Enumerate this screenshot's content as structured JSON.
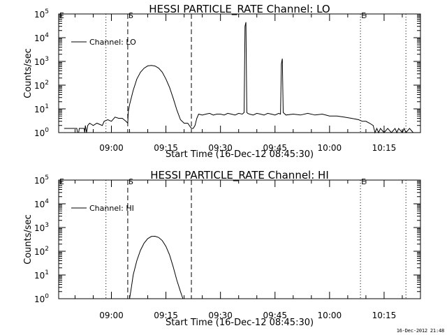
{
  "footer_timestamp": "16-Dec-2012 21:48",
  "chart_data": [
    {
      "type": "line",
      "title": "HESSI PARTICLE_RATE Channel: LO",
      "xlabel": "Start Time (16-Dec-12 08:45:30)",
      "ylabel": "Counts/sec",
      "yscale": "log",
      "ylim": [
        1,
        100000
      ],
      "xlim": [
        "08:45:30",
        "10:25:00"
      ],
      "x_ticks": [
        "09:00",
        "09:15",
        "09:30",
        "09:45",
        "10:00",
        "10:15"
      ],
      "y_ticks": [
        "10^0",
        "10^1",
        "10^2",
        "10^3",
        "10^4",
        "10^5"
      ],
      "legend": {
        "label": "Channel: LO",
        "position": "top-left"
      },
      "markers": [
        {
          "label": "E",
          "time": "08:45:30",
          "style": "none"
        },
        {
          "label": "",
          "time": "08:58:30",
          "style": "dotted"
        },
        {
          "label": "S",
          "time": "09:04:30",
          "style": "dashed"
        },
        {
          "label": "",
          "time": "09:22:00",
          "style": "dashed"
        },
        {
          "label": "E",
          "time": "10:08:30",
          "style": "dotted"
        },
        {
          "label": "",
          "time": "10:21:00",
          "style": "dotted"
        }
      ],
      "series": [
        {
          "name": "Channel: LO",
          "points": [
            [
              "08:47:00",
              1.5
            ],
            [
              "08:50:30",
              1.5
            ],
            [
              "08:50:40",
              1.0
            ],
            [
              "08:51:00",
              1.0
            ],
            [
              "08:51:10",
              1.5
            ],
            [
              "08:52:30",
              1.5
            ],
            [
              "08:52:40",
              1.0
            ],
            [
              "08:52:50",
              2.0
            ],
            [
              "08:53:10",
              1.0
            ],
            [
              "08:53:30",
              2.0
            ],
            [
              "08:54:00",
              2.5
            ],
            [
              "08:55:00",
              2.0
            ],
            [
              "08:56:00",
              2.5
            ],
            [
              "08:57:30",
              2.0
            ],
            [
              "08:58:00",
              3.0
            ],
            [
              "08:59:00",
              3.5
            ],
            [
              "09:00:00",
              3.0
            ],
            [
              "09:01:00",
              4.5
            ],
            [
              "09:02:00",
              4.0
            ],
            [
              "09:03:00",
              4.0
            ],
            [
              "09:04:00",
              3.0
            ],
            [
              "09:04:30",
              2.5
            ],
            [
              "09:04:40",
              8
            ],
            [
              "09:05:00",
              15
            ],
            [
              "09:06:00",
              60
            ],
            [
              "09:07:00",
              180
            ],
            [
              "09:08:00",
              350
            ],
            [
              "09:09:00",
              520
            ],
            [
              "09:10:00",
              650
            ],
            [
              "09:11:00",
              680
            ],
            [
              "09:12:00",
              640
            ],
            [
              "09:13:00",
              520
            ],
            [
              "09:14:00",
              350
            ],
            [
              "09:15:00",
              180
            ],
            [
              "09:16:00",
              80
            ],
            [
              "09:17:00",
              28
            ],
            [
              "09:18:00",
              9
            ],
            [
              "09:19:00",
              3.5
            ],
            [
              "09:20:00",
              2.5
            ],
            [
              "09:21:00",
              2.5
            ],
            [
              "09:22:00",
              1.5
            ],
            [
              "09:22:30",
              1.5
            ],
            [
              "09:23:00",
              2.0
            ],
            [
              "09:23:30",
              4.0
            ],
            [
              "09:24:00",
              6.0
            ],
            [
              "09:25:00",
              5.5
            ],
            [
              "09:26:00",
              6.0
            ],
            [
              "09:27:00",
              6.5
            ],
            [
              "09:28:00",
              5.5
            ],
            [
              "09:29:00",
              6.0
            ],
            [
              "09:30:00",
              6.0
            ],
            [
              "09:31:00",
              5.5
            ],
            [
              "09:32:00",
              6.5
            ],
            [
              "09:33:00",
              6.0
            ],
            [
              "09:34:00",
              5.5
            ],
            [
              "09:35:00",
              6.5
            ],
            [
              "09:36:00",
              6.0
            ],
            [
              "09:36:30",
              7.0
            ],
            [
              "09:36:45",
              30000
            ],
            [
              "09:37:00",
              45000
            ],
            [
              "09:37:15",
              7.0
            ],
            [
              "09:37:30",
              6.5
            ],
            [
              "09:38:00",
              6.0
            ],
            [
              "09:39:00",
              5.5
            ],
            [
              "09:40:00",
              6.5
            ],
            [
              "09:41:00",
              6.0
            ],
            [
              "09:42:00",
              5.5
            ],
            [
              "09:43:00",
              6.5
            ],
            [
              "09:44:00",
              6.0
            ],
            [
              "09:45:00",
              5.5
            ],
            [
              "09:46:00",
              6.5
            ],
            [
              "09:46:30",
              6.0
            ],
            [
              "09:46:45",
              800
            ],
            [
              "09:47:00",
              1300
            ],
            [
              "09:47:15",
              7.0
            ],
            [
              "09:47:30",
              6.5
            ],
            [
              "09:48:00",
              5.5
            ],
            [
              "09:50:00",
              6.0
            ],
            [
              "09:52:00",
              5.5
            ],
            [
              "09:54:00",
              6.5
            ],
            [
              "09:56:00",
              5.5
            ],
            [
              "09:58:00",
              6.0
            ],
            [
              "10:00:00",
              5.0
            ],
            [
              "10:02:00",
              5.0
            ],
            [
              "10:04:00",
              4.5
            ],
            [
              "10:06:00",
              4.0
            ],
            [
              "10:08:00",
              3.5
            ],
            [
              "10:09:00",
              3.0
            ],
            [
              "10:10:00",
              3.0
            ],
            [
              "10:11:00",
              2.5
            ],
            [
              "10:12:00",
              2.0
            ],
            [
              "10:12:30",
              1.0
            ],
            [
              "10:13:00",
              1.5
            ],
            [
              "10:13:30",
              1.0
            ],
            [
              "10:14:00",
              1.5
            ],
            [
              "10:15:00",
              1.0
            ],
            [
              "10:16:00",
              1.5
            ],
            [
              "10:17:00",
              1.0
            ],
            [
              "10:18:00",
              1.5
            ],
            [
              "10:18:30",
              1.0
            ],
            [
              "10:19:00",
              1.5
            ],
            [
              "10:20:00",
              1.0
            ],
            [
              "10:20:30",
              1.5
            ],
            [
              "10:21:00",
              1.0
            ],
            [
              "10:22:00",
              1.5
            ],
            [
              "10:23:00",
              1.0
            ]
          ]
        }
      ]
    },
    {
      "type": "line",
      "title": "HESSI PARTICLE_RATE Channel: HI",
      "xlabel": "Start Time (16-Dec-12 08:45:30)",
      "ylabel": "Counts/sec",
      "yscale": "log",
      "ylim": [
        1,
        100000
      ],
      "xlim": [
        "08:45:30",
        "10:25:00"
      ],
      "x_ticks": [
        "09:00",
        "09:15",
        "09:30",
        "09:45",
        "10:00",
        "10:15"
      ],
      "y_ticks": [
        "10^0",
        "10^1",
        "10^2",
        "10^3",
        "10^4",
        "10^5"
      ],
      "legend": {
        "label": "Channel: HI",
        "position": "top-left"
      },
      "markers": [
        {
          "label": "E",
          "time": "08:45:30",
          "style": "none"
        },
        {
          "label": "",
          "time": "08:58:30",
          "style": "dotted"
        },
        {
          "label": "S",
          "time": "09:04:30",
          "style": "dashed"
        },
        {
          "label": "",
          "time": "09:22:00",
          "style": "dashed"
        },
        {
          "label": "E",
          "time": "10:08:30",
          "style": "dotted"
        },
        {
          "label": "",
          "time": "10:21:00",
          "style": "dotted"
        }
      ],
      "series": [
        {
          "name": "Channel: HI",
          "points": [
            [
              "09:05:00",
              1.0
            ],
            [
              "09:05:30",
              3
            ],
            [
              "09:06:00",
              10
            ],
            [
              "09:07:00",
              40
            ],
            [
              "09:08:00",
              110
            ],
            [
              "09:09:00",
              220
            ],
            [
              "09:10:00",
              340
            ],
            [
              "09:11:00",
              420
            ],
            [
              "09:12:00",
              430
            ],
            [
              "09:13:00",
              380
            ],
            [
              "09:14:00",
              280
            ],
            [
              "09:15:00",
              160
            ],
            [
              "09:16:00",
              70
            ],
            [
              "09:17:00",
              22
            ],
            [
              "09:18:00",
              6
            ],
            [
              "09:19:00",
              2
            ],
            [
              "09:19:40",
              1.0
            ]
          ]
        }
      ]
    }
  ]
}
